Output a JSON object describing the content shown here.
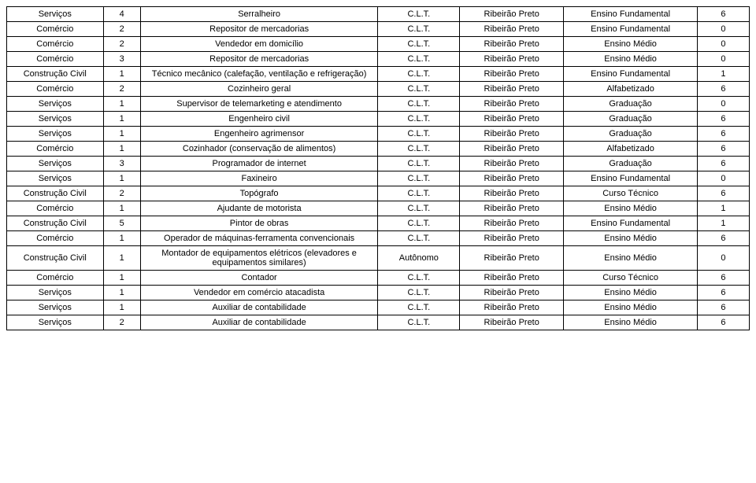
{
  "table": {
    "columns": [
      {
        "key": "c0",
        "width": "13%"
      },
      {
        "key": "c1",
        "width": "5%"
      },
      {
        "key": "c2",
        "width": "32%"
      },
      {
        "key": "c3",
        "width": "11%"
      },
      {
        "key": "c4",
        "width": "14%"
      },
      {
        "key": "c5",
        "width": "18%"
      },
      {
        "key": "c6",
        "width": "7%"
      }
    ],
    "rows": [
      [
        "Serviços",
        "4",
        "Serralheiro",
        "C.L.T.",
        "Ribeirão Preto",
        "Ensino Fundamental",
        "6"
      ],
      [
        "Comércio",
        "2",
        "Repositor de mercadorias",
        "C.L.T.",
        "Ribeirão Preto",
        "Ensino Fundamental",
        "0"
      ],
      [
        "Comércio",
        "2",
        "Vendedor em domicílio",
        "C.L.T.",
        "Ribeirão Preto",
        "Ensino Médio",
        "0"
      ],
      [
        "Comércio",
        "3",
        "Repositor de mercadorias",
        "C.L.T.",
        "Ribeirão Preto",
        "Ensino Médio",
        "0"
      ],
      [
        "Construção Civil",
        "1",
        "Técnico mecânico (calefação, ventilação e refrigeração)",
        "C.L.T.",
        "Ribeirão Preto",
        "Ensino Fundamental",
        "1"
      ],
      [
        "Comércio",
        "2",
        "Cozinheiro geral",
        "C.L.T.",
        "Ribeirão Preto",
        "Alfabetizado",
        "6"
      ],
      [
        "Serviços",
        "1",
        "Supervisor de telemarketing e atendimento",
        "C.L.T.",
        "Ribeirão Preto",
        "Graduação",
        "0"
      ],
      [
        "Serviços",
        "1",
        "Engenheiro civil",
        "C.L.T.",
        "Ribeirão Preto",
        "Graduação",
        "6"
      ],
      [
        "Serviços",
        "1",
        "Engenheiro agrimensor",
        "C.L.T.",
        "Ribeirão Preto",
        "Graduação",
        "6"
      ],
      [
        "Comércio",
        "1",
        "Cozinhador (conservação de alimentos)",
        "C.L.T.",
        "Ribeirão Preto",
        "Alfabetizado",
        "6"
      ],
      [
        "Serviços",
        "3",
        "Programador de internet",
        "C.L.T.",
        "Ribeirão Preto",
        "Graduação",
        "6"
      ],
      [
        "Serviços",
        "1",
        "Faxineiro",
        "C.L.T.",
        "Ribeirão Preto",
        "Ensino Fundamental",
        "0"
      ],
      [
        "Construção Civil",
        "2",
        "Topógrafo",
        "C.L.T.",
        "Ribeirão Preto",
        "Curso Técnico",
        "6"
      ],
      [
        "Comércio",
        "1",
        "Ajudante de motorista",
        "C.L.T.",
        "Ribeirão Preto",
        "Ensino Médio",
        "1"
      ],
      [
        "Construção Civil",
        "5",
        "Pintor de obras",
        "C.L.T.",
        "Ribeirão Preto",
        "Ensino Fundamental",
        "1"
      ],
      [
        "Comércio",
        "1",
        "Operador de máquinas-ferramenta convencionais",
        "C.L.T.",
        "Ribeirão Preto",
        "Ensino Médio",
        "6"
      ],
      [
        "Construção Civil",
        "1",
        "Montador de equipamentos elétricos (elevadores e equipamentos similares)",
        "Autônomo",
        "Ribeirão Preto",
        "Ensino Médio",
        "0"
      ],
      [
        "Comércio",
        "1",
        "Contador",
        "C.L.T.",
        "Ribeirão Preto",
        "Curso Técnico",
        "6"
      ],
      [
        "Serviços",
        "1",
        "Vendedor em comércio atacadista",
        "C.L.T.",
        "Ribeirão Preto",
        "Ensino Médio",
        "6"
      ],
      [
        "Serviços",
        "1",
        "Auxiliar de contabilidade",
        "C.L.T.",
        "Ribeirão Preto",
        "Ensino Médio",
        "6"
      ],
      [
        "Serviços",
        "2",
        "Auxiliar de contabilidade",
        "C.L.T.",
        "Ribeirão Preto",
        "Ensino Médio",
        "6"
      ]
    ],
    "border_color": "#000000",
    "text_color": "#000000",
    "background_color": "#ffffff",
    "font_size": 11,
    "font_family": "Arial"
  }
}
